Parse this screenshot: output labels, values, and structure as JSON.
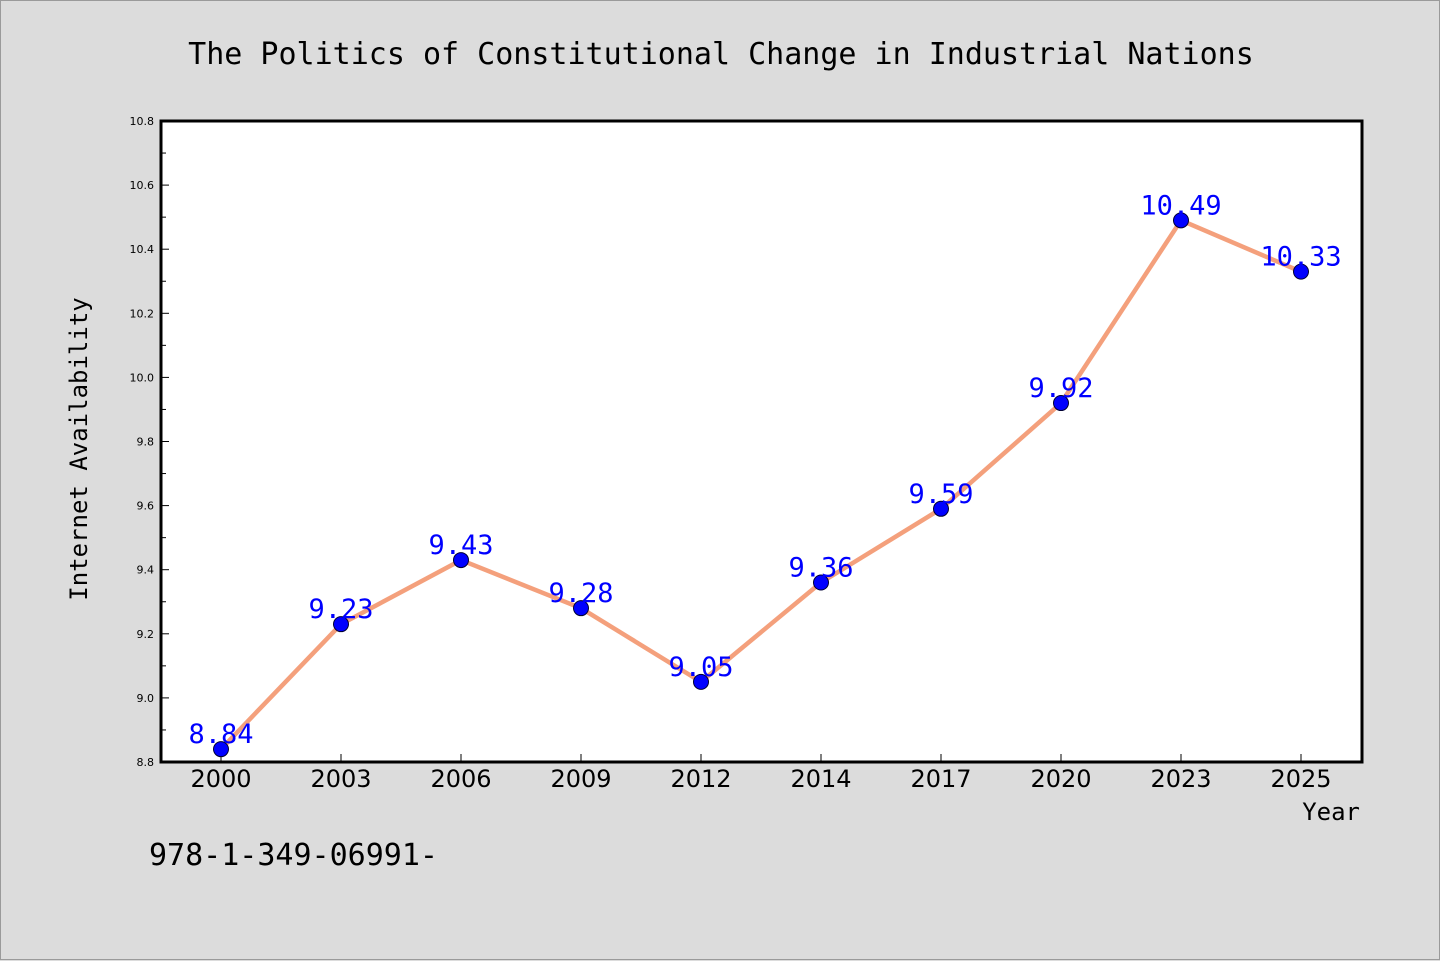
{
  "chart_data": {
    "type": "line",
    "title": "The Politics of Constitutional Change in Industrial Nations",
    "xlabel": "Year",
    "ylabel": "Internet Availability",
    "categories": [
      "2000",
      "2003",
      "2006",
      "2009",
      "2012",
      "2014",
      "2017",
      "2020",
      "2023",
      "2025"
    ],
    "series": [
      {
        "values": [
          8.84,
          9.23,
          9.43,
          9.28,
          9.05,
          9.36,
          9.59,
          9.92,
          10.49,
          10.33
        ],
        "labels": [
          "8.84",
          "9.23",
          "9.43",
          "9.28",
          "9.05",
          "9.36",
          "9.59",
          "9.92",
          "10.49",
          "10.33"
        ],
        "line_color": "#f4a07c",
        "marker_color": "#0000ff"
      }
    ],
    "ylim": [
      8.8,
      10.8
    ],
    "y_ticks": [
      "8.8",
      "9.0",
      "9.2",
      "9.4",
      "9.6",
      "9.8",
      "10.0",
      "10.2",
      "10.4",
      "10.6",
      "10.8"
    ],
    "grid": false,
    "legend": "none"
  },
  "footnote": "978-1-349-06991-"
}
